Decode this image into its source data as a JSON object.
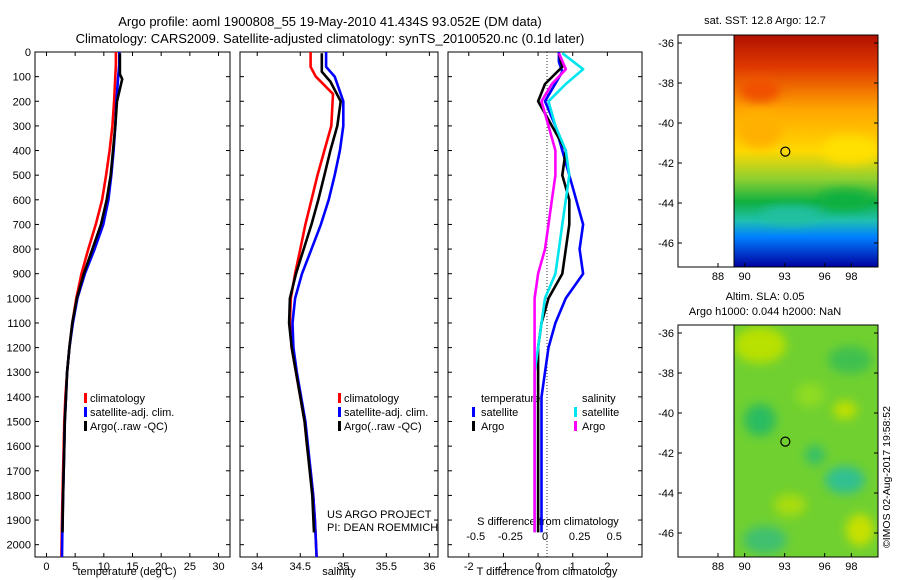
{
  "header": {
    "line1": "Argo profile: aoml 1900808_55 19-May-2010 41.434S 93.052E (DM data)",
    "line2": "Climatology: CARS2009. Satellite-adjusted climatology: synTS_20100520.nc (0.1d later)"
  },
  "footer": {
    "project": "US ARGO PROJECT",
    "pi": "PI: DEAN ROEMMICH",
    "stamp": "©IMOS 02-Aug-2017 19:58:52"
  },
  "colors": {
    "climatology": "#ff0000",
    "satellite": "#0000ff",
    "argo": "#000000",
    "sal_satellite": "#00e5ee",
    "sal_argo": "#ff00ff"
  },
  "chart_data": [
    {
      "type": "line",
      "xlabel": "temperature (deg C)",
      "xlim": [
        -2,
        32
      ],
      "xticks": [
        0,
        5,
        10,
        15,
        20,
        25,
        30
      ],
      "ylim": [
        0,
        2050
      ],
      "yticks": [
        0,
        100,
        200,
        300,
        400,
        500,
        600,
        700,
        800,
        900,
        1000,
        1100,
        1200,
        1300,
        1400,
        1500,
        1600,
        1700,
        1800,
        1900,
        2000
      ],
      "legend": [
        "climatology",
        "satellite-adj. clim.",
        "Argo(..raw -QC)"
      ],
      "series": [
        {
          "name": "climatology",
          "color": "#ff0000",
          "x": [
            12.1,
            12.1,
            12.0,
            11.8,
            11.5,
            11.0,
            10.4,
            9.7,
            8.6,
            7.3,
            6.1,
            5.2,
            4.5,
            4.0,
            3.6,
            3.3,
            3.1,
            3.0,
            2.9,
            2.8,
            2.7,
            2.6
          ],
          "y": [
            0,
            50,
            100,
            200,
            300,
            400,
            500,
            600,
            700,
            800,
            900,
            1000,
            1100,
            1200,
            1300,
            1400,
            1500,
            1600,
            1700,
            1800,
            1900,
            2050
          ]
        },
        {
          "name": "satellite-adj. clim.",
          "color": "#0000ff",
          "x": [
            12.7,
            12.7,
            12.5,
            12.2,
            12.0,
            11.7,
            11.3,
            10.8,
            9.9,
            8.4,
            6.7,
            5.4,
            4.6,
            4.0,
            3.6,
            3.4,
            3.2,
            3.1,
            3.0,
            2.9,
            2.8,
            2.7
          ],
          "y": [
            0,
            50,
            100,
            200,
            300,
            400,
            500,
            600,
            700,
            800,
            900,
            1000,
            1100,
            1200,
            1300,
            1400,
            1500,
            1600,
            1700,
            1800,
            1900,
            2050
          ]
        },
        {
          "name": "Argo(..raw -QC)",
          "color": "#000000",
          "x": [
            12.8,
            12.8,
            13.2,
            12.3,
            12.0,
            11.6,
            11.2,
            10.5,
            9.5,
            8.0,
            6.5,
            5.3,
            4.5,
            4.0,
            3.6,
            3.4,
            3.2,
            3.1,
            3.0,
            2.9,
            2.8
          ],
          "y": [
            5,
            90,
            110,
            200,
            300,
            400,
            500,
            600,
            700,
            800,
            900,
            1000,
            1100,
            1200,
            1300,
            1400,
            1500,
            1600,
            1700,
            1800,
            1950
          ]
        }
      ]
    },
    {
      "type": "line",
      "xlabel": "salinity",
      "xlim": [
        33.8,
        36.1
      ],
      "xticks": [
        34,
        34.5,
        35,
        35.5,
        36
      ],
      "ylim": [
        0,
        2050
      ],
      "legend": [
        "climatology",
        "satellite-adj. clim.",
        "Argo(..raw -QC)"
      ],
      "series": [
        {
          "name": "climatology",
          "color": "#ff0000",
          "x": [
            34.62,
            34.62,
            34.68,
            34.88,
            34.86,
            34.78,
            34.7,
            34.63,
            34.56,
            34.5,
            34.44,
            34.39,
            34.38,
            34.4,
            34.45,
            34.5,
            34.55,
            34.58,
            34.62,
            34.65,
            34.67,
            34.69
          ],
          "y": [
            0,
            60,
            100,
            170,
            300,
            400,
            500,
            600,
            700,
            800,
            900,
            1000,
            1100,
            1200,
            1300,
            1400,
            1500,
            1600,
            1700,
            1800,
            1900,
            2050
          ]
        },
        {
          "name": "satellite-adj. clim.",
          "color": "#0000ff",
          "x": [
            34.8,
            34.8,
            34.9,
            35.0,
            35.0,
            34.96,
            34.9,
            34.83,
            34.74,
            34.63,
            34.52,
            34.44,
            34.41,
            34.42,
            34.46,
            34.51,
            34.56,
            34.59,
            34.62,
            34.65,
            34.67,
            34.69
          ],
          "y": [
            0,
            60,
            100,
            200,
            300,
            400,
            500,
            600,
            700,
            800,
            900,
            1000,
            1100,
            1200,
            1300,
            1400,
            1500,
            1600,
            1700,
            1800,
            1900,
            2050
          ]
        },
        {
          "name": "Argo(..raw -QC)",
          "color": "#000000",
          "x": [
            34.75,
            34.75,
            34.85,
            34.97,
            34.93,
            34.85,
            34.78,
            34.71,
            34.63,
            34.54,
            34.45,
            34.38,
            34.37,
            34.4,
            34.45,
            34.5,
            34.55,
            34.58,
            34.61,
            34.64,
            34.66
          ],
          "y": [
            5,
            80,
            120,
            200,
            300,
            400,
            500,
            600,
            700,
            800,
            900,
            1000,
            1100,
            1200,
            1300,
            1400,
            1500,
            1600,
            1700,
            1800,
            1950
          ]
        }
      ]
    },
    {
      "type": "line",
      "xlabel": "T difference from climatology",
      "xlabel_top": "S difference from climatology",
      "xlim": [
        -2.6,
        3.0
      ],
      "xticks": [
        -2,
        -1,
        0,
        1,
        2
      ],
      "xticks_top": [
        -0.5,
        -0.25,
        0,
        0.25,
        0.5
      ],
      "xtick_top_labels": [
        "-0.5",
        "-0.25",
        "0",
        "0.25",
        "0.5"
      ],
      "ylim": [
        0,
        2050
      ],
      "legend_titles": [
        "temperature",
        "salinity"
      ],
      "legend": [
        "satellite",
        "Argo",
        "satellite",
        "Argo"
      ],
      "series": [
        {
          "name": "satellite",
          "color": "#0000ff",
          "x": [
            0.6,
            0.6,
            0.7,
            0.2,
            0.5,
            0.7,
            0.9,
            1.1,
            1.3,
            1.2,
            1.3,
            0.8,
            0.5,
            0.3,
            0.2,
            0.1,
            0.1,
            0.1,
            0.1,
            0.1,
            0.1
          ],
          "y": [
            0,
            40,
            80,
            200,
            300,
            400,
            500,
            600,
            700,
            800,
            900,
            1000,
            1100,
            1200,
            1300,
            1400,
            1500,
            1600,
            1700,
            1800,
            1950
          ]
        },
        {
          "name": "Argo",
          "color": "#000000",
          "x": [
            0.6,
            0.7,
            0.2,
            0.0,
            0.4,
            0.8,
            0.7,
            0.9,
            0.9,
            0.8,
            0.7,
            0.3,
            0.1,
            0.0,
            0.0,
            0.0,
            0.0,
            0.0,
            0.0,
            0.0
          ],
          "y": [
            5,
            60,
            130,
            200,
            300,
            400,
            500,
            600,
            700,
            800,
            900,
            1000,
            1100,
            1200,
            1300,
            1400,
            1500,
            1600,
            1700,
            1950
          ]
        },
        {
          "name": "satellite",
          "color": "#00e5ee",
          "x": [
            0.7,
            1.3,
            0.8,
            0.3,
            0.5,
            0.8,
            0.9,
            0.8,
            0.7,
            0.6,
            0.5,
            0.2,
            0.1,
            0.0,
            -0.1,
            -0.1,
            -0.1,
            -0.1,
            -0.1,
            -0.1
          ],
          "y": [
            5,
            70,
            130,
            200,
            300,
            400,
            500,
            600,
            700,
            800,
            900,
            1000,
            1100,
            1200,
            1300,
            1400,
            1500,
            1600,
            1700,
            1950
          ]
        },
        {
          "name": "Argo",
          "color": "#ff00ff",
          "x": [
            0.6,
            0.8,
            0.4,
            0.1,
            0.3,
            0.5,
            0.5,
            0.4,
            0.3,
            0.2,
            0.0,
            -0.1,
            -0.1,
            -0.1,
            -0.1,
            -0.1,
            -0.1,
            -0.1,
            -0.1,
            -0.1
          ],
          "y": [
            5,
            70,
            130,
            200,
            300,
            400,
            500,
            600,
            700,
            800,
            900,
            1000,
            1100,
            1200,
            1300,
            1400,
            1500,
            1600,
            1700,
            1950
          ]
        }
      ]
    },
    {
      "type": "heatmap",
      "title": "sat. SST: 12.8 Argo: 12.7",
      "xlim": [
        85,
        100
      ],
      "xticks": [
        88,
        90,
        93,
        96,
        98
      ],
      "ylim": [
        -47.2,
        -35.6
      ],
      "yticks": [
        -36,
        -38,
        -40,
        -42,
        -44,
        -46
      ],
      "marker": [
        93.05,
        -41.43
      ]
    },
    {
      "type": "heatmap",
      "title": "Altim. SLA: 0.05",
      "subtitle": "Argo h1000: 0.044 h2000: NaN",
      "xlim": [
        85,
        100
      ],
      "xticks": [
        88,
        90,
        93,
        96,
        98
      ],
      "ylim": [
        -47.2,
        -35.6
      ],
      "yticks": [
        -36,
        -38,
        -40,
        -42,
        -44,
        -46
      ],
      "marker": [
        93.05,
        -41.43
      ]
    }
  ]
}
